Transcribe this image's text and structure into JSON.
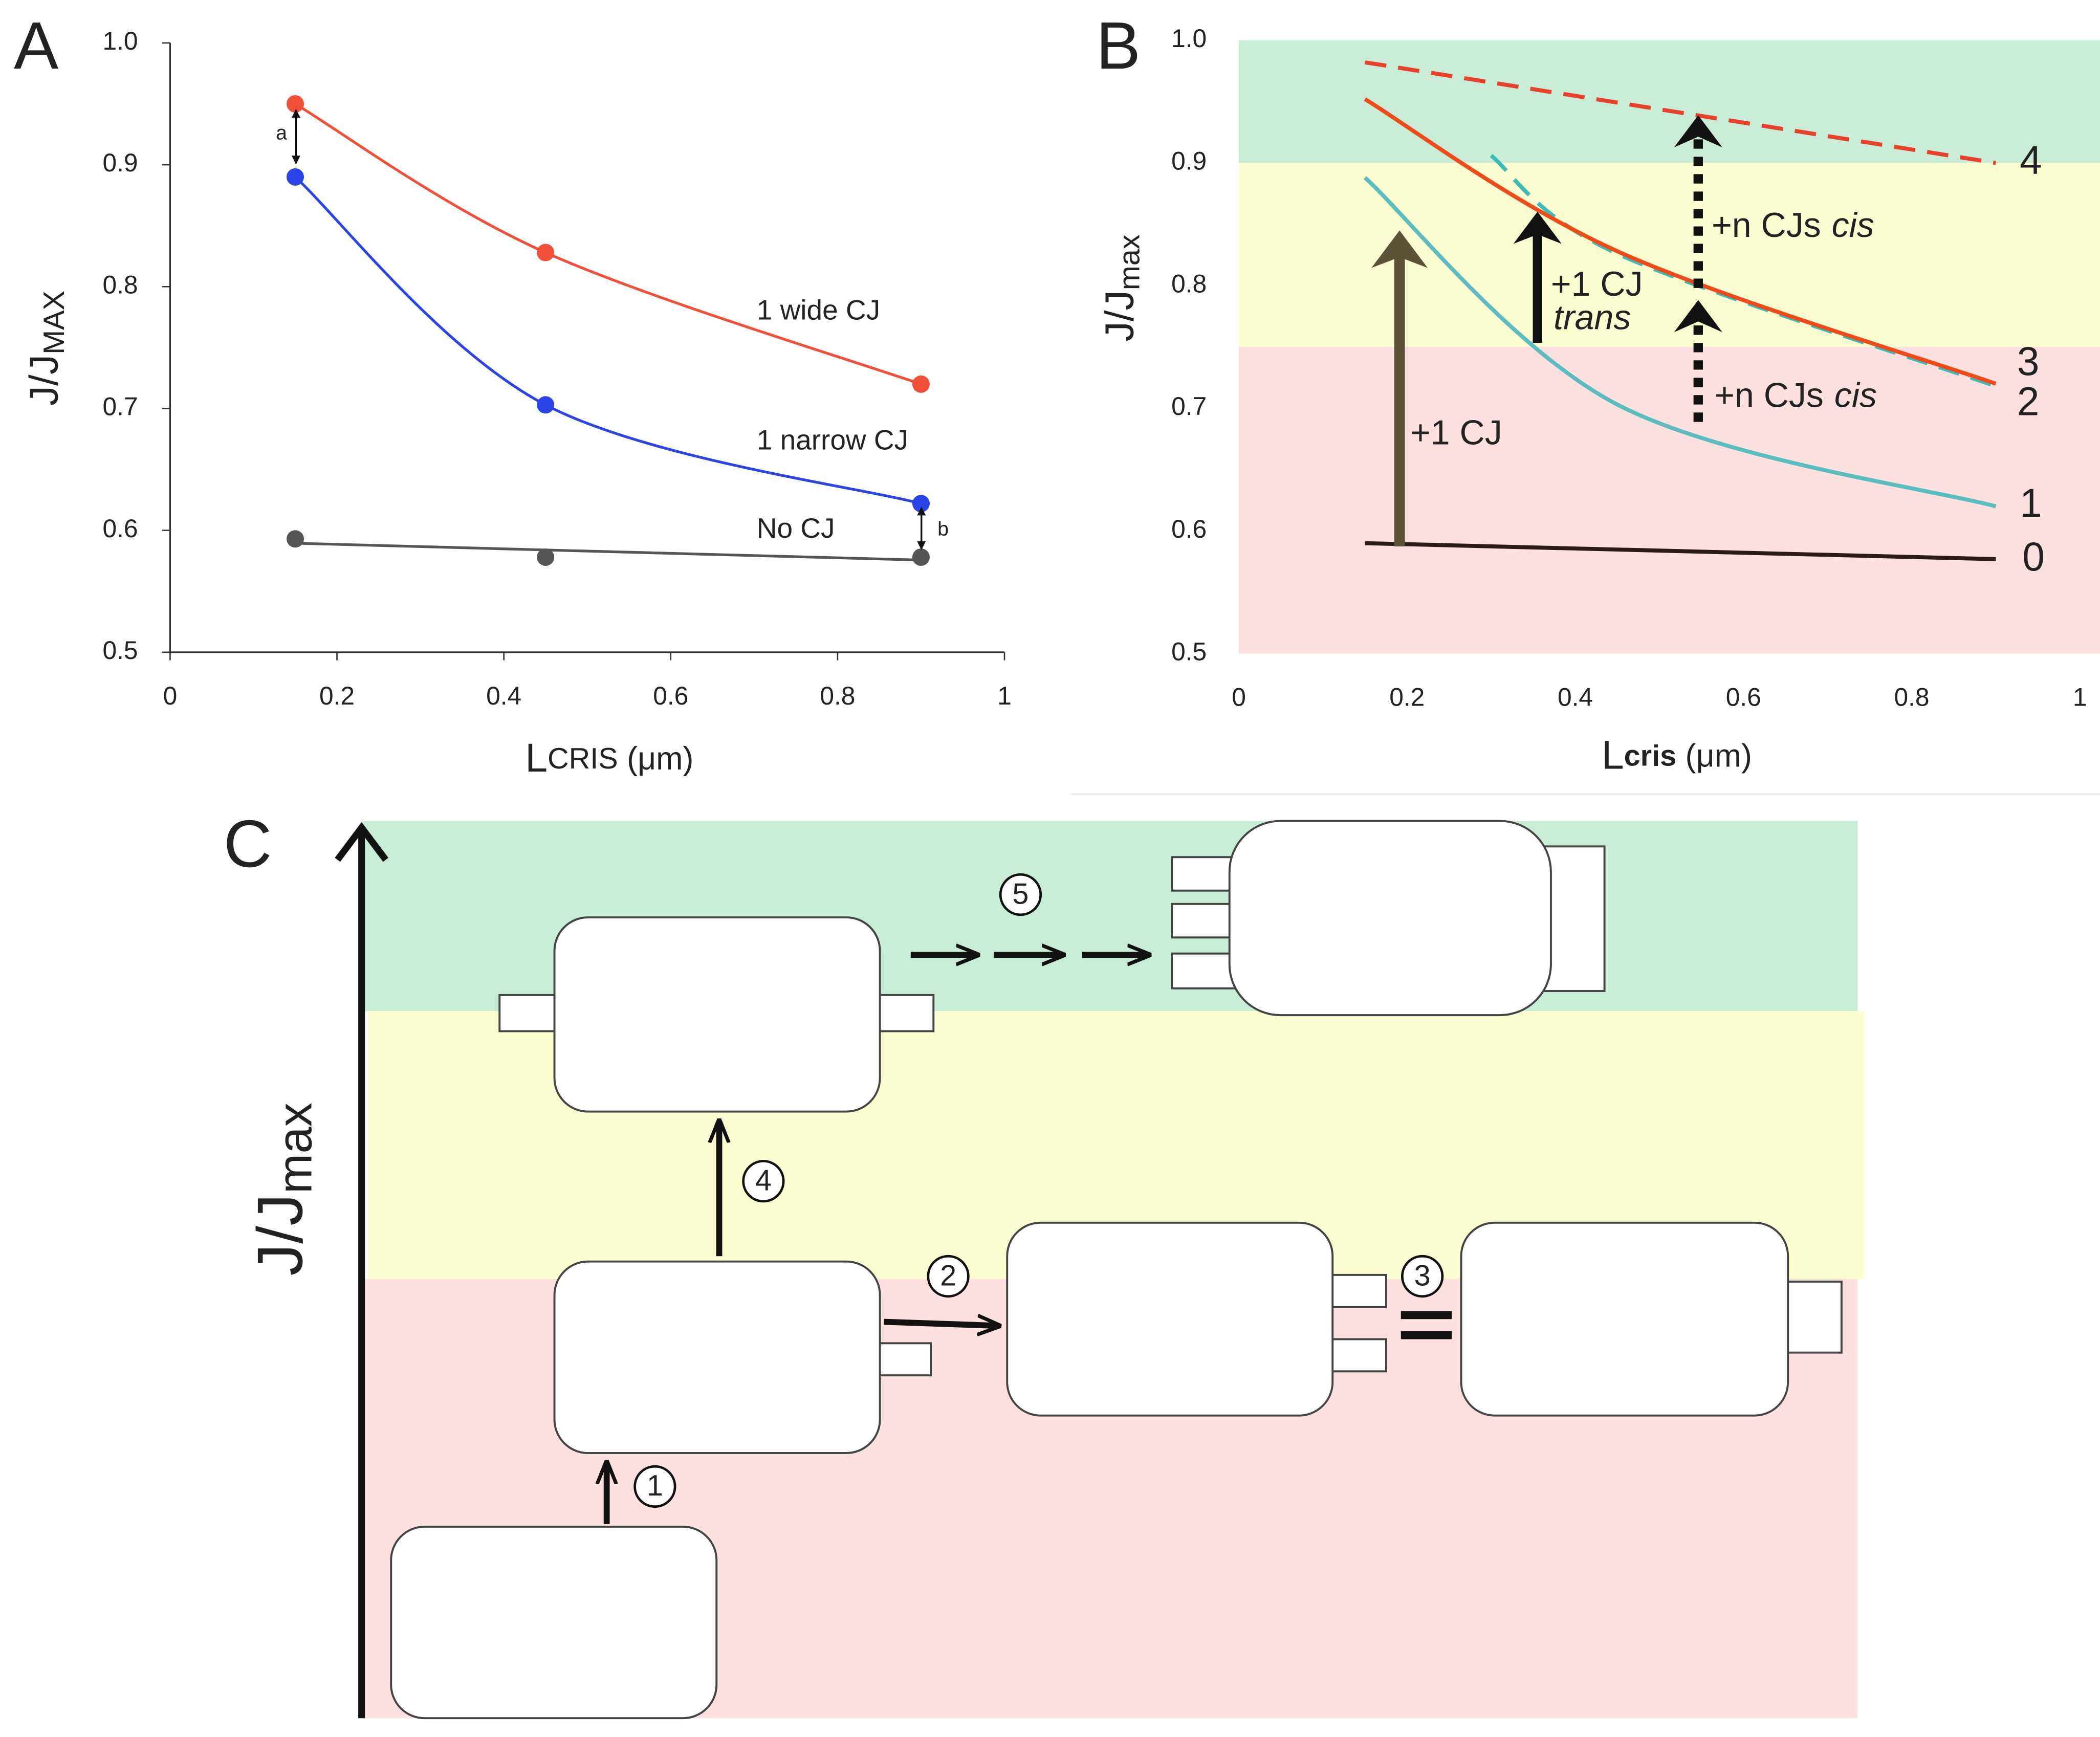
{
  "chart_data": [
    {
      "type": "scatter",
      "panel": "A",
      "xlabel": [
        "L",
        "CRIS",
        " (μm)"
      ],
      "ylabel": [
        "J/J",
        "MAX"
      ],
      "xlim": [
        0,
        1
      ],
      "xticks": [
        0,
        0.2,
        0.4,
        0.6,
        0.8,
        1
      ],
      "ylim": [
        0.5,
        1
      ],
      "yticks": [
        0.5,
        0.6,
        0.7,
        0.8,
        0.9,
        {
          "value": 1,
          "label": "1.0"
        }
      ],
      "series": [
        {
          "name": "1 wide CJ",
          "color": "#f0503a",
          "x": [
            0.15,
            0.45,
            0.9
          ],
          "values": [
            0.95,
            0.828,
            0.72
          ]
        },
        {
          "name": "1 narrow CJ",
          "color": "#2a44e8",
          "x": [
            0.15,
            0.45,
            0.9
          ],
          "values": [
            0.89,
            0.703,
            0.622
          ]
        },
        {
          "name": "No CJ",
          "color": "#555555",
          "x": [
            0.15,
            0.45,
            0.9
          ],
          "values": [
            0.593,
            0.578,
            0.578
          ],
          "fit": "linear"
        }
      ],
      "annotations": [
        "a",
        "b"
      ]
    },
    {
      "type": "line",
      "panel": "B",
      "xlabel": [
        "L",
        "cris",
        " (μm)"
      ],
      "ylabel": [
        "J/J",
        "max"
      ],
      "xlim": [
        0,
        1
      ],
      "xticks": [
        0,
        0.2,
        0.4,
        0.6,
        0.8,
        1
      ],
      "ylim": [
        0.5,
        1
      ],
      "yticks": [
        0.5,
        0.6,
        0.7,
        0.8,
        0.9,
        {
          "value": 1,
          "label": "1.0"
        }
      ],
      "bands": [
        {
          "from": 0.9,
          "to": 1,
          "color": "#c9ecd6"
        },
        {
          "from": 0.75,
          "to": 0.9,
          "color": "#fdfdd2"
        },
        {
          "from": 0.5,
          "to": 0.75,
          "color": "#fde1e1"
        }
      ],
      "series": [
        {
          "name": "0",
          "color": "#2a1a1a",
          "label_color": "#111111",
          "x": [
            0.15,
            0.9
          ],
          "values": [
            0.59,
            0.577
          ]
        },
        {
          "name": "1",
          "color": "#5bbdbd",
          "label_color": "#3a80d0",
          "x": [
            0.15,
            0.45,
            0.9
          ],
          "values": [
            0.888,
            0.703,
            0.62
          ]
        },
        {
          "name": "2",
          "color": "#3cbcb4",
          "label_color": "#3a80d0",
          "x": [
            0.3,
            0.45,
            0.9
          ],
          "values": [
            0.906,
            0.826,
            0.718
          ],
          "dashed": true
        },
        {
          "name": "3",
          "color": "#ee4a1a",
          "label_color": "#e8302a",
          "x": [
            0.15,
            0.45,
            0.9
          ],
          "values": [
            0.952,
            0.828,
            0.72
          ]
        },
        {
          "name": "4",
          "color": "#e8402a",
          "label_color": "#e8302a",
          "x": [
            0.15,
            0.9
          ],
          "values": [
            0.982,
            0.9
          ],
          "dashed": true
        }
      ],
      "annotations": {
        "one_cj": "+1 CJ",
        "trans_top": "+1 CJ",
        "trans": "trans",
        "cis_upper": "+n CJs",
        "cis_upper_it": "cis",
        "cis_lower": "+n CJs",
        "cis_lower_it": "cis"
      }
    }
  ],
  "diagram": {
    "panel": "C",
    "axis_label": [
      "J/J",
      "max"
    ],
    "steps": [
      "1",
      "2",
      "3",
      "4",
      "5"
    ]
  }
}
